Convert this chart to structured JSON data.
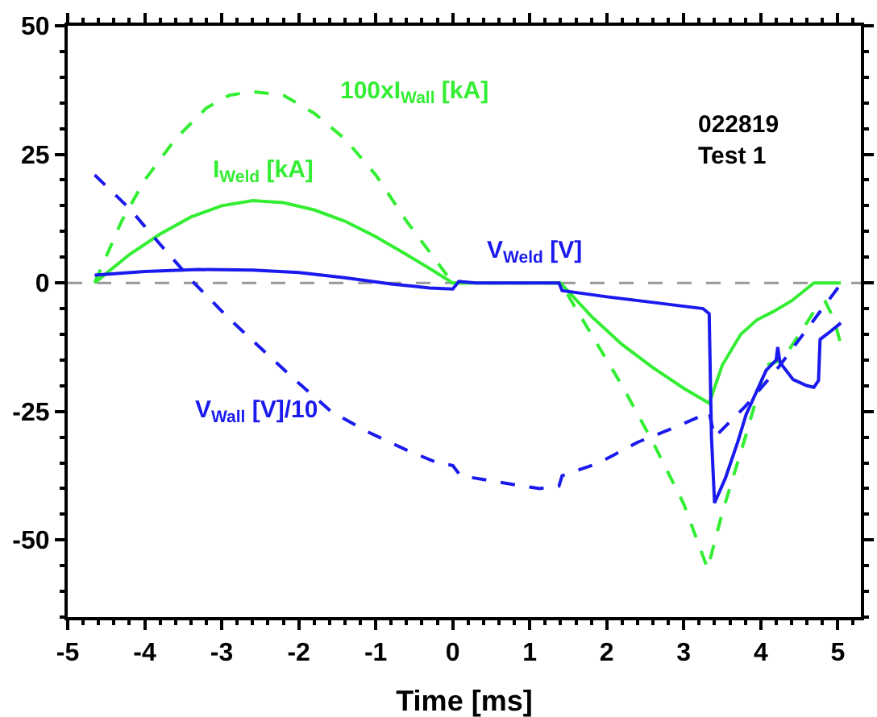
{
  "chart_data": {
    "type": "line",
    "xlabel": "Time [ms]",
    "xlim": [
      -5,
      5.3
    ],
    "xticks": [
      -5,
      -4,
      -3,
      -2,
      -1,
      0,
      1,
      2,
      3,
      4,
      5
    ],
    "ylim": [
      -65,
      50
    ],
    "yticks": [
      -50,
      -25,
      0,
      25,
      50
    ],
    "grid": false,
    "legend": false,
    "marker": "none",
    "series": [
      {
        "name": "100xI$_{Wall}$ [kA]",
        "color": "#33ee33",
        "line_style": "dashed",
        "x": [
          -4.65,
          -4.3,
          -4.0,
          -3.6,
          -3.2,
          -2.9,
          -2.6,
          -2.2,
          -1.8,
          -1.4,
          -1.0,
          -0.6,
          -0.3,
          0.0,
          0.5,
          1.0,
          1.4,
          1.8,
          2.2,
          2.6,
          3.0,
          3.31,
          3.5,
          3.8,
          4.07,
          4.28,
          4.5,
          4.69,
          4.84,
          4.95,
          5.04
        ],
        "values": [
          0,
          12,
          20,
          28,
          34,
          36.5,
          37.2,
          36.5,
          33,
          28,
          21,
          12,
          6,
          0,
          0,
          0,
          0,
          -10,
          -20,
          -31,
          -43,
          -55.6,
          -44.7,
          -30,
          -16,
          -15,
          -10,
          -5.6,
          -3.7,
          -7,
          -12
        ]
      },
      {
        "name": "I$_{Weld}$ [kA]",
        "color": "#33ee33",
        "line_style": "solid",
        "x": [
          -4.65,
          -4.2,
          -3.8,
          -3.4,
          -3.0,
          -2.6,
          -2.2,
          -1.8,
          -1.4,
          -1.0,
          -0.6,
          -0.3,
          0.0,
          0.5,
          1.0,
          1.4,
          1.8,
          2.2,
          2.6,
          3.0,
          3.33,
          3.5,
          3.74,
          3.95,
          4.16,
          4.4,
          4.69,
          5.04
        ],
        "values": [
          0,
          5.5,
          9.5,
          12.8,
          15,
          16,
          15.6,
          14.2,
          12,
          9,
          5.5,
          2.8,
          0,
          0,
          0,
          0,
          -6.5,
          -12,
          -16.5,
          -20.5,
          -23.4,
          -16,
          -10,
          -7.2,
          -5.6,
          -3.5,
          0,
          0
        ]
      },
      {
        "name": "V$_{Weld}$ [V]",
        "color": "#1a1aee",
        "line_style": "solid",
        "x": [
          -4.65,
          -4.0,
          -3.3,
          -2.6,
          -2.0,
          -1.4,
          -0.8,
          -0.3,
          0.0,
          0.08,
          0.3,
          0.8,
          1.38,
          1.42,
          2.0,
          2.6,
          3.25,
          3.33,
          3.36,
          3.4,
          3.54,
          3.7,
          3.81,
          4.07,
          4.2,
          4.22,
          4.25,
          4.42,
          4.6,
          4.69,
          4.75,
          4.77,
          4.9,
          5.04
        ],
        "values": [
          1.5,
          2.2,
          2.6,
          2.5,
          2.0,
          1.0,
          -0.2,
          -1.0,
          -1.2,
          0.3,
          0,
          0,
          0,
          -1.5,
          -2.7,
          -3.8,
          -5,
          -6,
          -30,
          -42.8,
          -38,
          -31,
          -25.6,
          -17,
          -15,
          -12.5,
          -15.5,
          -18.8,
          -20,
          -20.3,
          -19,
          -11,
          -9.5,
          -7.8
        ]
      },
      {
        "name": "V$_{Wall}$ [V]/10",
        "color": "#1a1aee",
        "line_style": "dashed",
        "x": [
          -4.65,
          -4.2,
          -3.8,
          -3.36,
          -2.9,
          -2.4,
          -2.0,
          -1.58,
          -1.1,
          -0.6,
          -0.2,
          0.0,
          0.1,
          0.5,
          0.9,
          1.13,
          1.38,
          1.42,
          1.9,
          2.4,
          2.9,
          3.33,
          3.4,
          3.8,
          4.2,
          4.6,
          5.05
        ],
        "values": [
          21,
          14.5,
          7.5,
          0,
          -7,
          -14,
          -19.5,
          -25,
          -29,
          -32.5,
          -35,
          -35.5,
          -37.5,
          -38.5,
          -39.5,
          -40,
          -39.5,
          -37.5,
          -35,
          -31,
          -28,
          -25.2,
          -30,
          -24,
          -17,
          -9,
          0
        ]
      }
    ],
    "ref_lines": [
      {
        "axis": "y",
        "value": 0,
        "color": "#999999",
        "line_style": "dashed"
      }
    ],
    "annotations": [
      "022819\nTest 1"
    ]
  }
}
